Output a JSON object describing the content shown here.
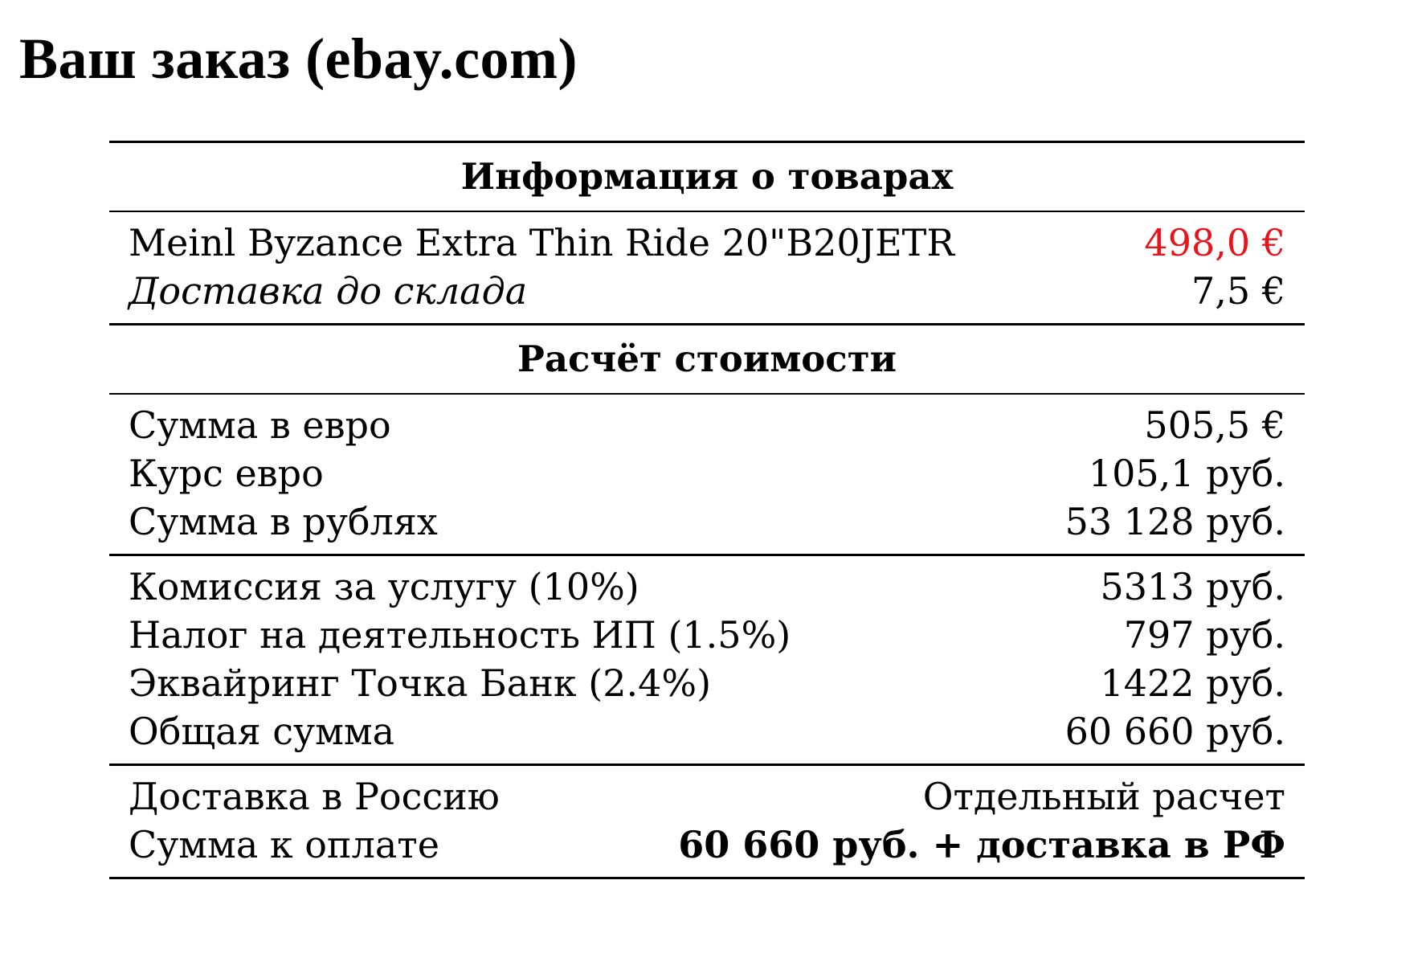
{
  "page": {
    "title": "Ваш заказ (ebay.com)"
  },
  "colors": {
    "price_highlight": "#e8141b",
    "text": "#000000",
    "background": "#ffffff"
  },
  "products": {
    "header": "Информация о товарах",
    "item_name": "Meinl Byzance Extra Thin Ride 20\"B20JETR",
    "item_price": "498,0 €",
    "shipping_label": "Доставка до склада",
    "shipping_value": "7,5 €"
  },
  "calculation": {
    "header": "Расчёт стоимости",
    "sum_eur_label": "Сумма в евро",
    "sum_eur_value": "505,5 €",
    "rate_label": "Курс евро",
    "rate_value": "105,1 руб.",
    "sum_rub_label": "Сумма в рублях",
    "sum_rub_value": "53 128 руб.",
    "commission_label": "Комиссия за услугу (10%)",
    "commission_value": "5313 руб.",
    "tax_label": "Налог на деятельность ИП (1.5%)",
    "tax_value": "797 руб.",
    "acquiring_label": "Эквайринг Точка Банк (2.4%)",
    "acquiring_value": "1422 руб.",
    "total_label": "Общая сумма",
    "total_value": "60 660 руб.",
    "delivery_ru_label": "Доставка в Россию",
    "delivery_ru_value": "Отдельный расчет",
    "payable_label": "Сумма к оплате",
    "payable_value": "60 660 руб. + доставка в РФ"
  }
}
